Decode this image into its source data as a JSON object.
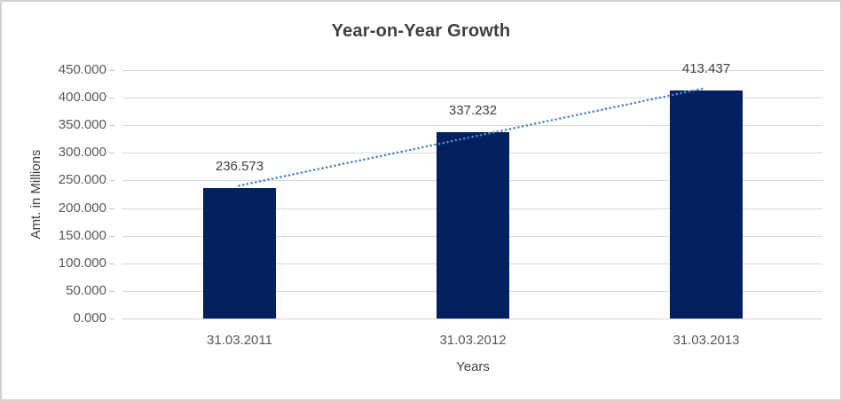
{
  "chart_data": {
    "type": "bar",
    "title": "Year-on-Year Growth",
    "xlabel": "Years",
    "ylabel": "Amt. in Millions",
    "categories": [
      "31.03.2011",
      "31.03.2012",
      "31.03.2013"
    ],
    "values": [
      236.573,
      337.232,
      413.437
    ],
    "data_labels": [
      "236.573",
      "337.232",
      "413.437"
    ],
    "ylim": [
      0,
      450
    ],
    "ytick_step": 50,
    "ytick_labels": [
      "0.000",
      "50.000",
      "100.000",
      "150.000",
      "200.000",
      "250.000",
      "300.000",
      "350.000",
      "400.000",
      "450.000"
    ],
    "grid": true,
    "legend": "none",
    "bar_color": "#002060",
    "trendline": {
      "type": "linear",
      "style": "dotted",
      "color": "#4e86c8"
    },
    "colors": {
      "title": "#3f3f3f",
      "axis_title": "#404040",
      "tick_label": "#595959",
      "data_label": "#404040",
      "gridline": "#d9d9d9",
      "axis_line": "#d0d0d0",
      "frame_border": "#d2d2d2",
      "background": "#ffffff"
    }
  }
}
